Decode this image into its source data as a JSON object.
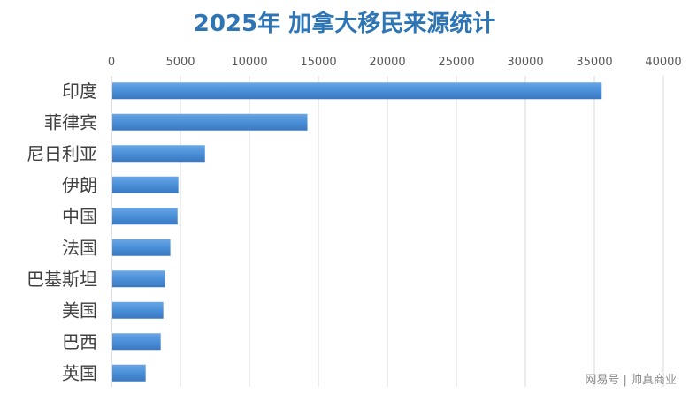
{
  "chart_data": {
    "type": "bar",
    "orientation": "horizontal",
    "title": "2025年 加拿大移民来源统计",
    "categories": [
      "印度",
      "菲律宾",
      "尼日利亚",
      "伊朗",
      "中国",
      "法国",
      "巴基斯坦",
      "美国",
      "巴西",
      "英国"
    ],
    "values": [
      35530,
      14200,
      6780,
      4850,
      4790,
      4270,
      3890,
      3760,
      3570,
      2480
    ],
    "xlim": [
      0,
      40000
    ],
    "xticks": [
      0,
      5000,
      10000,
      15000,
      20000,
      25000,
      30000,
      35000,
      40000
    ],
    "xlabel": "",
    "ylabel": "",
    "grid": true,
    "x_axis_position": "top",
    "bar_color": "#4a8fd8"
  },
  "watermark": "网易号 | 帅真商业"
}
